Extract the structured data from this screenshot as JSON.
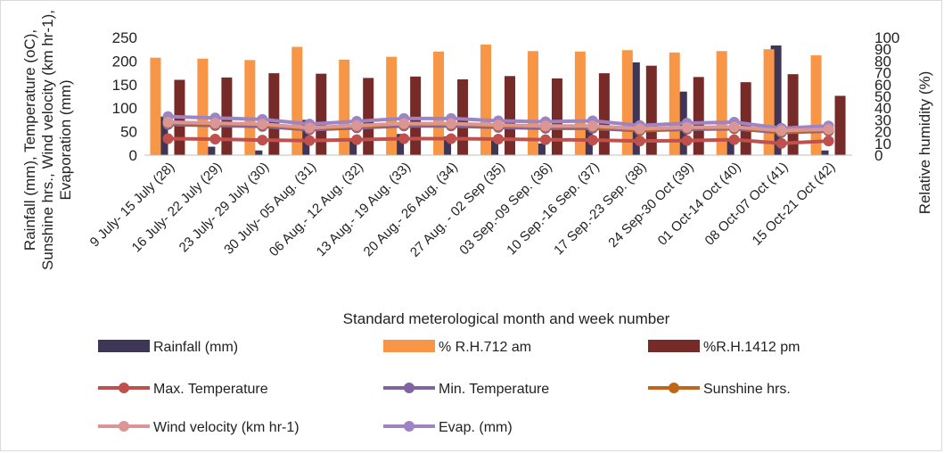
{
  "chart_data": {
    "type": "bar",
    "categories": [
      "9 July- 15 July (28)",
      "16 July- 22 July (29)",
      "23 July- 29 July (30)",
      "30 July- 05 Aug. (31)",
      "06 Aug.- 12 Aug. (32)",
      "13 Aug.- 19 Aug. (33)",
      "20 Aug.- 26 Aug. (34)",
      "27 Aug. - 02 Sep (35)",
      "03 Sep.-09 Sep. (36)",
      "10 Sep.-16 Sep. (37)",
      "17 Sep.-23 Sep. (38)",
      "24 Sep-30 Oct (39)",
      "01 Oct-14 Oct (40)",
      "08 Oct-07 Oct (41)",
      "15 Oct-21 Oct (42)"
    ],
    "xlabel": "Standard meterological month and week number",
    "ylabel": "Rainfall (mm), Temperature (oC), Sunshine hrs., Wind velocity (km hr-1), Evaporation (mm)",
    "ylabel_lines": [
      "Rainfall (mm), Temperature (oC),",
      "Sunshine hrs., Wind velocity (km hr-1),",
      "Evaporation (mm)"
    ],
    "y2label": "Relative humidity (%)",
    "ylim": [
      0,
      250
    ],
    "yticks": [
      0,
      50,
      100,
      150,
      200,
      250
    ],
    "y2lim": [
      0,
      100
    ],
    "y2ticks": [
      0,
      10,
      20,
      30,
      40,
      50,
      60,
      70,
      80,
      90,
      100
    ],
    "grid": false,
    "legend_position": "bottom",
    "series": [
      {
        "name": "Rainfall (mm)",
        "kind": "bar",
        "axis": "left",
        "color": "#3f3556",
        "values": [
          82,
          18,
          10,
          75,
          35,
          45,
          40,
          36,
          25,
          60,
          197,
          135,
          35,
          233,
          10
        ]
      },
      {
        "name": "% R.H.712 am",
        "kind": "bar",
        "axis": "left",
        "color": "#f79646",
        "values": [
          207,
          205,
          202,
          230,
          203,
          209,
          220,
          235,
          221,
          220,
          223,
          218,
          221,
          225,
          212
        ]
      },
      {
        "name": "%R.H.1412 pm",
        "kind": "bar",
        "axis": "left",
        "color": "#772b29",
        "values": [
          160,
          165,
          174,
          173,
          164,
          167,
          161,
          168,
          163,
          174,
          190,
          166,
          155,
          172,
          126
        ]
      },
      {
        "name": "Max. Temperature",
        "kind": "line",
        "axis": "left",
        "color": "#c0504d",
        "values": [
          35,
          34,
          32,
          31,
          33,
          35,
          35,
          34,
          33,
          32,
          30,
          31,
          33,
          25,
          30
        ]
      },
      {
        "name": "Min. Temperature",
        "kind": "line",
        "axis": "left",
        "color": "#8064a2",
        "values": [
          65,
          63,
          61,
          54,
          58,
          62,
          62,
          59,
          57,
          57,
          52,
          55,
          56,
          48,
          51
        ]
      },
      {
        "name": "Sunshine hrs.",
        "kind": "line",
        "axis": "left",
        "color": "#c0651a",
        "values": [
          68,
          66,
          64,
          56,
          61,
          65,
          65,
          62,
          60,
          60,
          54,
          57,
          58,
          50,
          53
        ]
      },
      {
        "name": "Wind velocity (km hr-1)",
        "kind": "line",
        "axis": "left",
        "color": "#d99694",
        "values": [
          70,
          68,
          66,
          58,
          63,
          67,
          67,
          64,
          62,
          62,
          56,
          59,
          60,
          52,
          55
        ]
      },
      {
        "name": "Evap. (mm)",
        "kind": "line",
        "axis": "left",
        "color": "#9e84c2",
        "values": [
          82,
          79,
          76,
          66,
          72,
          78,
          78,
          73,
          71,
          73,
          63,
          68,
          70,
          57,
          62
        ]
      }
    ]
  }
}
